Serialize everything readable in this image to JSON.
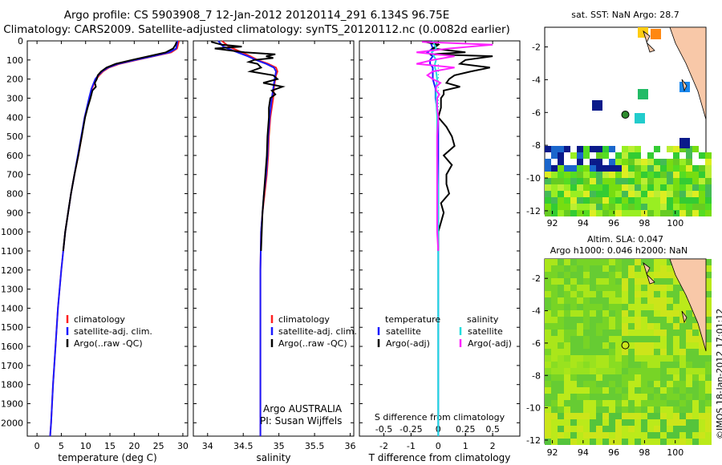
{
  "title": {
    "line1": "Argo profile: CS 5903908_7 12-Jan-2012 20120114_291 6.134S 96.75E",
    "line2": "Climatology: CARS2009. Satellite-adjusted climatology: synTS_20120112.nc (0.0082d earlier)"
  },
  "colors": {
    "climatology": "#ff2020",
    "satellite": "#1a1aff",
    "argo": "#000000",
    "sal_satellite": "#22dddd",
    "sal_argo": "#ff22ff",
    "marker": "#2e8b2e"
  },
  "depth_ticks": [
    "0",
    "100",
    "200",
    "300",
    "400",
    "500",
    "600",
    "700",
    "800",
    "900",
    "1000",
    "1100",
    "1200",
    "1300",
    "1400",
    "1500",
    "1600",
    "1700",
    "1800",
    "1900",
    "2000"
  ],
  "legend": {
    "climatology": "climatology",
    "satellite": "satellite-adj. clim.",
    "argo": "Argo(..raw -QC)"
  },
  "chart_data": [
    {
      "type": "line",
      "id": "temperature",
      "xlabel": "temperature (deg C)",
      "ylabel": "",
      "xlim": [
        -2,
        31
      ],
      "ylim": [
        2070,
        0
      ],
      "xticks": [
        0,
        5,
        10,
        15,
        20,
        25,
        30
      ],
      "series": [
        {
          "name": "climatology",
          "color": "climatology",
          "depth": [
            0,
            40,
            60,
            80,
            100,
            120,
            140,
            160,
            180,
            200,
            250,
            300,
            400,
            500,
            600,
            700,
            800,
            900,
            1000,
            1200,
            1400,
            1600,
            1800,
            2000,
            2070
          ],
          "values": [
            29.2,
            28.8,
            27.6,
            24.0,
            20.5,
            17.0,
            14.8,
            13.6,
            12.8,
            12.2,
            11.3,
            10.8,
            9.8,
            9.2,
            8.5,
            7.7,
            7.0,
            6.4,
            5.8,
            5.0,
            4.3,
            3.8,
            3.3,
            2.9,
            2.7
          ]
        },
        {
          "name": "satellite-adj. clim.",
          "color": "satellite",
          "depth": [
            0,
            40,
            60,
            80,
            100,
            120,
            140,
            160,
            180,
            200,
            250,
            300,
            400,
            500,
            600,
            700,
            800,
            900,
            1000,
            1200,
            1400,
            1600,
            1800,
            2000,
            2070
          ],
          "values": [
            28.9,
            28.6,
            27.2,
            23.8,
            20.2,
            16.7,
            14.6,
            13.4,
            12.6,
            12.0,
            11.2,
            10.7,
            9.8,
            9.1,
            8.4,
            7.7,
            7.0,
            6.4,
            5.8,
            5.0,
            4.3,
            3.8,
            3.3,
            2.9,
            2.7
          ]
        },
        {
          "name": "Argo(..raw -QC)",
          "color": "argo",
          "depth": [
            5,
            20,
            40,
            60,
            80,
            100,
            120,
            140,
            160,
            180,
            200,
            220,
            240,
            260,
            280,
            300,
            350,
            400,
            500,
            600,
            700,
            800,
            900,
            1000,
            1100
          ],
          "values": [
            28.7,
            28.5,
            28.0,
            26.5,
            23.0,
            19.5,
            16.2,
            14.3,
            13.2,
            12.5,
            12.3,
            11.9,
            12.1,
            11.4,
            11.2,
            11.0,
            10.4,
            9.9,
            9.2,
            8.5,
            7.7,
            7.0,
            6.4,
            5.8,
            5.4
          ]
        }
      ]
    },
    {
      "type": "line",
      "id": "salinity",
      "xlabel": "salinity",
      "ylabel": "",
      "xlim": [
        33.8,
        36.05
      ],
      "ylim": [
        2070,
        0
      ],
      "xticks": [
        34,
        34.5,
        35,
        35.5,
        36
      ],
      "series": [
        {
          "name": "climatology",
          "color": "climatology",
          "depth": [
            0,
            30,
            60,
            80,
            100,
            120,
            140,
            160,
            180,
            200,
            250,
            300,
            400,
            500,
            600,
            700,
            800,
            900,
            1000,
            1200,
            1400,
            1600,
            1800,
            2000,
            2070
          ],
          "values": [
            34.2,
            34.3,
            34.48,
            34.6,
            34.7,
            34.85,
            34.96,
            34.98,
            34.96,
            34.95,
            34.93,
            34.92,
            34.88,
            34.86,
            34.85,
            34.83,
            34.8,
            34.77,
            34.75,
            34.74,
            34.74,
            34.74,
            34.74,
            34.74,
            34.74
          ]
        },
        {
          "name": "satellite-adj. clim.",
          "color": "satellite",
          "depth": [
            0,
            30,
            60,
            80,
            100,
            120,
            140,
            160,
            180,
            200,
            250,
            300,
            400,
            500,
            600,
            700,
            800,
            900,
            1000,
            1200,
            1400,
            1600,
            1800,
            2000,
            2070
          ],
          "values": [
            34.15,
            34.22,
            34.42,
            34.56,
            34.68,
            34.82,
            34.93,
            34.96,
            34.95,
            34.94,
            34.92,
            34.9,
            34.87,
            34.85,
            34.84,
            34.82,
            34.79,
            34.77,
            34.75,
            34.74,
            34.74,
            34.74,
            34.74,
            34.74,
            34.74
          ]
        },
        {
          "name": "Argo(..raw -QC)",
          "color": "argo",
          "depth": [
            5,
            20,
            30,
            40,
            60,
            70,
            80,
            90,
            100,
            110,
            120,
            140,
            160,
            180,
            200,
            220,
            240,
            260,
            280,
            300,
            350,
            400,
            500,
            600,
            700,
            800,
            900,
            1000,
            1100
          ],
          "values": [
            34.05,
            34.2,
            34.48,
            34.1,
            34.52,
            34.95,
            34.82,
            34.92,
            34.65,
            34.58,
            34.7,
            34.75,
            34.6,
            34.92,
            34.98,
            34.78,
            35.05,
            34.9,
            34.95,
            34.88,
            34.86,
            34.86,
            34.84,
            34.83,
            34.81,
            34.79,
            34.77,
            34.76,
            34.75
          ]
        }
      ]
    },
    {
      "type": "line",
      "id": "difference",
      "xlabel": "T difference from climatology",
      "xlabel2": "S difference from climatology",
      "ylabel": "",
      "xlim": [
        -2.9,
        3.0
      ],
      "ylim": [
        2070,
        0
      ],
      "xticks": [
        -2,
        -1,
        0,
        1,
        2
      ],
      "x2lim": [
        -0.725,
        0.75
      ],
      "x2ticks": [
        -0.5,
        -0.25,
        0,
        0.25,
        0.5
      ],
      "legend": {
        "temperature": "temperature",
        "salinity": "salinity",
        "satellite": "satellite",
        "argo": "Argo(-adj)"
      },
      "series": [
        {
          "name": "satellite",
          "group": "temperature",
          "axis": "T",
          "color": "satellite",
          "depth": [
            0,
            40,
            60,
            80,
            100,
            120,
            140,
            160,
            200,
            250,
            300,
            400,
            600,
            800,
            1000,
            1400,
            2000,
            2070
          ],
          "values": [
            -0.3,
            -0.2,
            -0.4,
            -0.2,
            -0.3,
            -0.3,
            -0.2,
            -0.2,
            -0.2,
            -0.1,
            -0.1,
            0,
            0,
            0,
            0,
            0,
            0,
            0
          ]
        },
        {
          "name": "Argo(-adj)",
          "group": "temperature",
          "axis": "T",
          "color": "argo",
          "depth": [
            5,
            20,
            40,
            60,
            70,
            80,
            100,
            120,
            140,
            160,
            180,
            200,
            220,
            240,
            260,
            280,
            300,
            350,
            400,
            450,
            500,
            550,
            600,
            650,
            700,
            750,
            800,
            850,
            900,
            950,
            1000,
            1100
          ],
          "values": [
            -0.5,
            0,
            -0.2,
            1.0,
            -0.3,
            2.0,
            1.0,
            0.8,
            1.9,
            1.2,
            0.6,
            0.4,
            0.3,
            0.8,
            0.2,
            0.2,
            0.1,
            0.1,
            0,
            0.3,
            0.5,
            0.6,
            0.2,
            0.5,
            0.3,
            0.3,
            0.4,
            0.1,
            0.2,
            0.1,
            0,
            0
          ]
        },
        {
          "name": "satellite",
          "group": "salinity",
          "axis": "S",
          "color": "sal_satellite",
          "depth": [
            0,
            40,
            60,
            80,
            100,
            120,
            140,
            160,
            200,
            250,
            300,
            400,
            600,
            800,
            1000,
            1400,
            2000,
            2070
          ],
          "values": [
            -0.05,
            -0.02,
            -0.06,
            -0.04,
            -0.02,
            -0.03,
            -0.03,
            -0.02,
            -0.01,
            -0.02,
            -0.02,
            -0.01,
            -0.01,
            0,
            0,
            0,
            0,
            0
          ]
        },
        {
          "name": "Argo(-adj)",
          "group": "salinity",
          "axis": "S",
          "color": "sal_argo",
          "depth": [
            5,
            20,
            40,
            60,
            80,
            100,
            120,
            140,
            160,
            180,
            200,
            220,
            240,
            260,
            280,
            300,
            350,
            400,
            500,
            600,
            700,
            800,
            900,
            1000,
            1100
          ],
          "values": [
            -0.15,
            0.5,
            0.1,
            -0.2,
            0.15,
            -0.05,
            -0.2,
            0.15,
            -0.05,
            -0.1,
            -0.05,
            0.02,
            -0.02,
            -0.02,
            0.01,
            -0.01,
            -0.01,
            0,
            -0.01,
            -0.01,
            -0.01,
            -0.01,
            -0.01,
            -0.01,
            0
          ]
        }
      ]
    },
    {
      "type": "heatmap",
      "id": "sst-map",
      "title": "sat. SST: NaN Argo: 28.7",
      "xlim": [
        91.5,
        102
      ],
      "ylim": [
        -12.2,
        -0.8
      ],
      "xticks": [
        92,
        94,
        96,
        98,
        100
      ],
      "yticks": [
        -2,
        -4,
        -6,
        -8,
        -10,
        -12
      ],
      "argo_position": {
        "lon": 96.75,
        "lat": -6.134
      }
    },
    {
      "type": "heatmap",
      "id": "sla-map",
      "title": "Altim. SLA: 0.047",
      "subtitle": "Argo h1000: 0.046 h2000: NaN",
      "xlim": [
        91.5,
        102
      ],
      "ylim": [
        -12.2,
        -0.8
      ],
      "xticks": [
        92,
        94,
        96,
        98,
        100
      ],
      "yticks": [
        -2,
        -4,
        -6,
        -8,
        -10,
        -12
      ],
      "argo_position": {
        "lon": 96.75,
        "lat": -6.134
      }
    }
  ],
  "annotations": {
    "argo_country": "Argo AUSTRALIA",
    "pi": "PI: Susan Wijffels"
  },
  "stamp": "©IMOS 18-Jan-2012 17:01:12"
}
